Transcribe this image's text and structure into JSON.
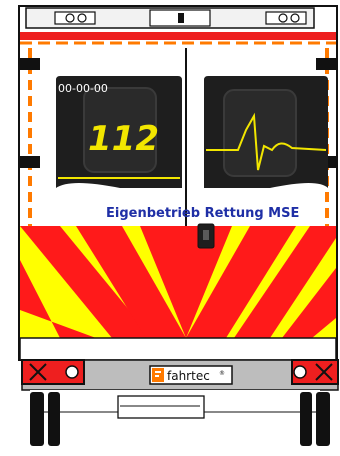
{
  "vehicle": {
    "license_plate_text": "00-00-00",
    "emergency_number": "112",
    "operator_text": "Eigenbetrieb Rettung MSE",
    "brand_text": "fahrtec",
    "brand_symbol": "®"
  },
  "colors": {
    "body_white": "#ffffff",
    "chevron_red": "#ff1a1a",
    "chevron_yellow": "#ffff00",
    "stripe_orange": "#ff7a00",
    "stripe_red": "#ee1f1f",
    "operator_text_blue": "#1f2fa6",
    "window_dark": "#1e1e1e",
    "window_accent_yellow": "#f2e600",
    "bumper_grey": "#bdbdbd",
    "outline": "#111111"
  },
  "icons": {
    "rear_window_left": "rear-window-112-icon",
    "rear_window_right": "rear-window-ecg-heartbeat-icon",
    "brand_logo": "fahrtec-f-logo-icon",
    "door_handle": "door-handle-icon",
    "tail_light_left": "tail-light-icon",
    "tail_light_right": "tail-light-icon"
  }
}
